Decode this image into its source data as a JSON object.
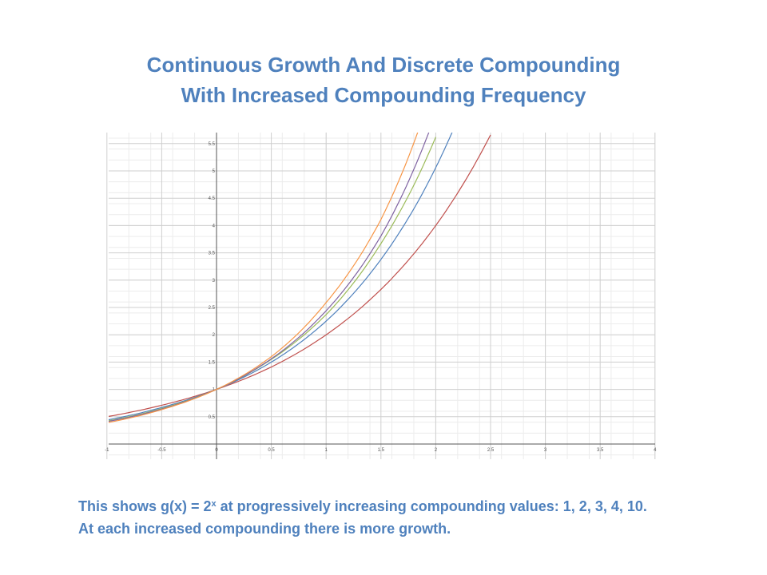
{
  "slide": {
    "title_line1": "Continuous Growth And Discrete Compounding",
    "title_line2": "With Increased Compounding Frequency",
    "caption_part1": "This shows g(x) = 2",
    "caption_sup": "x",
    "caption_part2": " at progressively increasing compounding values: 1, 2, 3, 4, 10.",
    "caption_line2": "At each increased compounding there is more growth."
  },
  "chart_data": {
    "type": "line",
    "title": "",
    "xlabel": "",
    "ylabel": "",
    "xlim": [
      -1,
      4
    ],
    "ylim": [
      0,
      5.6
    ],
    "x_ticks": [
      "-1",
      "-0.5",
      "0",
      "0.5",
      "1",
      "1.5",
      "2",
      "2.5",
      "3",
      "3.5",
      "4"
    ],
    "y_ticks": [
      "0.5",
      "1",
      "1.5",
      "2",
      "2.5",
      "3",
      "3.5",
      "4",
      "4.5",
      "5",
      "5.5"
    ],
    "grid": true,
    "legend": "none",
    "series": [
      {
        "color": "#c0504d",
        "x": [
          -1,
          -0.5,
          0,
          0.5,
          1,
          1.5,
          2,
          2.5
        ],
        "y": [
          0.5,
          0.71,
          1,
          1.41,
          2,
          2.83,
          4,
          5.66
        ]
      },
      {
        "color": "#4f81bd",
        "x": [
          -1,
          -0.5,
          0,
          0.5,
          1,
          1.5,
          2,
          2.18
        ],
        "y": [
          0.44,
          0.67,
          1,
          1.5,
          2.25,
          3.38,
          5.06,
          5.85
        ]
      },
      {
        "color": "#9bbb59",
        "x": [
          -1,
          -0.5,
          0,
          0.5,
          1,
          1.5,
          2
        ],
        "y": [
          0.42,
          0.65,
          1,
          1.55,
          2.37,
          3.67,
          5.62
        ]
      },
      {
        "color": "#8064a2",
        "x": [
          -1,
          -0.5,
          0,
          0.5,
          1,
          1.5,
          1.96
        ],
        "y": [
          0.41,
          0.64,
          1,
          1.56,
          2.44,
          3.81,
          5.83
        ]
      },
      {
        "color": "#f79646",
        "x": [
          -1,
          -0.5,
          0,
          0.5,
          1,
          1.5,
          1.84
        ],
        "y": [
          0.39,
          0.63,
          1,
          1.6,
          2.59,
          4.11,
          5.73
        ]
      }
    ]
  }
}
